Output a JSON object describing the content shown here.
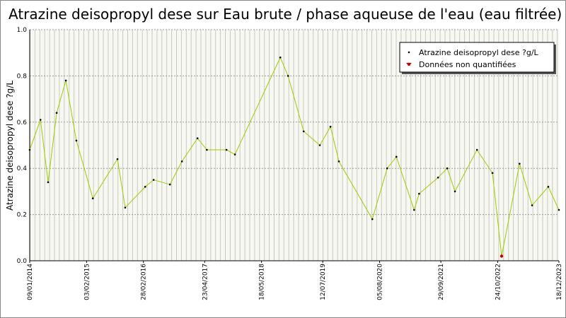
{
  "chart_data": {
    "type": "line",
    "title": "Atrazine deisopropyl dese sur Eau brute / phase aqueuse de l'eau (eau filtrée)",
    "y_label": "Atrazine deisopropyl dese ?g/L",
    "xlim": [
      "09/01/2014",
      "18/12/2023"
    ],
    "xticks": [
      "09/01/2014",
      "03/02/2015",
      "28/02/2016",
      "23/04/2017",
      "18/05/2018",
      "12/07/2019",
      "05/08/2020",
      "29/09/2021",
      "24/10/2022",
      "18/12/2023"
    ],
    "ylim": [
      0,
      1
    ],
    "yticks": [
      {
        "value": 0,
        "label": "0.0"
      },
      0.2,
      0.4,
      0.6,
      0.8,
      {
        "value": 1,
        "label": "1.0"
      }
    ],
    "grid": true,
    "legend": "upper right",
    "series": [
      {
        "name": "Atrazine deisopropyl dese ?g/L",
        "color": "#99cc00",
        "marker_color": "#000000",
        "x": [
          "09/01/2014",
          "24/03/2014",
          "15/05/2014",
          "13/07/2014",
          "14/09/2014",
          "25/11/2014",
          "18/03/2015",
          "03/09/2015",
          "26/10/2015",
          "11/03/2016",
          "08/05/2016",
          "28/08/2016",
          "18/11/2016",
          "05/03/2017",
          "08/05/2017",
          "20/09/2017",
          "17/11/2017",
          "24/09/2018",
          "16/11/2018",
          "03/03/2019",
          "22/06/2019",
          "03/09/2019",
          "31/10/2019",
          "16/06/2020",
          "26/09/2020",
          "28/11/2020",
          "30/03/2021",
          "03/05/2021",
          "10/09/2021",
          "12/11/2021",
          "04/01/2022",
          "04/06/2022",
          "18/09/2022",
          "20/11/2022",
          "23/03/2023",
          "17/06/2023",
          "06/10/2023",
          "18/12/2023"
        ],
        "values": [
          0.48,
          0.61,
          0.34,
          0.64,
          0.78,
          0.52,
          0.27,
          0.44,
          0.23,
          0.32,
          0.35,
          0.33,
          0.43,
          0.53,
          0.48,
          0.48,
          0.46,
          0.88,
          0.8,
          0.56,
          0.5,
          0.58,
          0.43,
          0.18,
          0.4,
          0.45,
          0.22,
          0.29,
          0.36,
          0.4,
          0.3,
          0.48,
          0.38,
          0.02,
          0.42,
          0.24,
          0.32,
          0.22
        ]
      },
      {
        "name": "Données non quantifiées",
        "color": "#cc0000",
        "x": [
          "20/11/2022"
        ],
        "values": [
          0.02
        ]
      }
    ]
  }
}
